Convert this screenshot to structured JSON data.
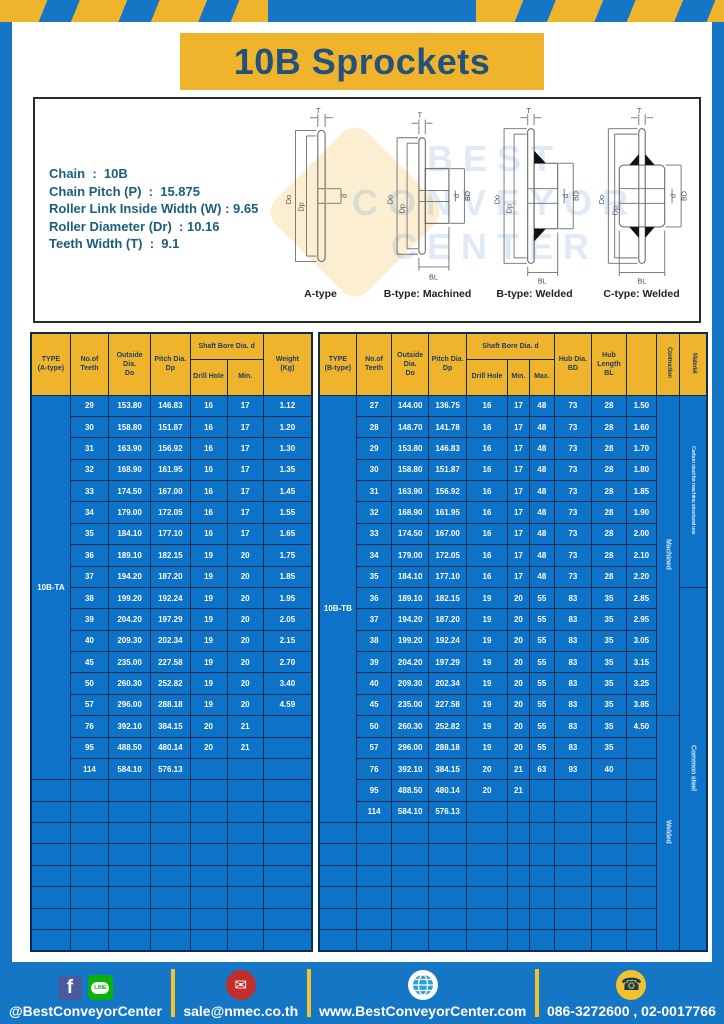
{
  "page": {
    "title": "10B Sprockets"
  },
  "specs": {
    "lines": [
      "Chain  :  10B",
      "Chain Pitch (P)  :  15.875",
      "Roller Link Inside Width (W) : 9.65",
      "Roller Diameter (Dr)  : 10.16",
      "Teeth Width (T)  :  9.1"
    ]
  },
  "watermark": {
    "lines": [
      "BEST",
      "CONVEYOR",
      "CENTER"
    ]
  },
  "dim_labels": {
    "t": "T",
    "do": "Do",
    "dp": "Dp",
    "d": "d",
    "bd": "BD",
    "bl": "BL"
  },
  "diagrams": [
    {
      "caption": "A-type"
    },
    {
      "caption": "B-type: Machined"
    },
    {
      "caption": "B-type: Welded"
    },
    {
      "caption": "C-type: Welded"
    }
  ],
  "table_a": {
    "type_label": "10B-TA",
    "headers": {
      "type": "TYPE\n(A-type)",
      "teeth": "No.of\nTeeth",
      "outside": "Outside\nDia.\nDo",
      "pitch": "Pitch Dia.\nDp",
      "shaft_bore": "Shaft Bore Dia. d",
      "drill": "Drill Hole",
      "min": "Min.",
      "weight": "Weight\n(Kg)"
    },
    "col_keys": [
      "teeth",
      "outside-dia",
      "pitch-dia",
      "drill-hole",
      "min",
      "weight"
    ],
    "rows": [
      [
        "29",
        "153.80",
        "146.83",
        "16",
        "17",
        "1.12"
      ],
      [
        "30",
        "158.80",
        "151.87",
        "16",
        "17",
        "1.20"
      ],
      [
        "31",
        "163.90",
        "156.92",
        "16",
        "17",
        "1.30"
      ],
      [
        "32",
        "168.90",
        "161.95",
        "16",
        "17",
        "1.35"
      ],
      [
        "33",
        "174.50",
        "167.00",
        "16",
        "17",
        "1.45"
      ],
      [
        "34",
        "179.00",
        "172.05",
        "16",
        "17",
        "1.55"
      ],
      [
        "35",
        "184.10",
        "177.10",
        "16",
        "17",
        "1.65"
      ],
      [
        "36",
        "189.10",
        "182.15",
        "19",
        "20",
        "1.75"
      ],
      [
        "37",
        "194.20",
        "187.20",
        "19",
        "20",
        "1.85"
      ],
      [
        "38",
        "199.20",
        "192.24",
        "19",
        "20",
        "1.95"
      ],
      [
        "39",
        "204.20",
        "197.29",
        "19",
        "20",
        "2.05"
      ],
      [
        "40",
        "209.30",
        "202.34",
        "19",
        "20",
        "2.15"
      ],
      [
        "45",
        "235.00",
        "227.58",
        "19",
        "20",
        "2.70"
      ],
      [
        "50",
        "260.30",
        "252.82",
        "19",
        "20",
        "3.40"
      ],
      [
        "57",
        "296.00",
        "288.18",
        "19",
        "20",
        "4.59"
      ],
      [
        "76",
        "392.10",
        "384.15",
        "20",
        "21",
        ""
      ],
      [
        "95",
        "488.50",
        "480.14",
        "20",
        "21",
        ""
      ],
      [
        "114",
        "584.10",
        "576.13",
        "",
        "",
        ""
      ]
    ],
    "empty_rows": 8
  },
  "table_b": {
    "type_label": "10B-TB",
    "headers": {
      "type": "TYPE\n(B-type)",
      "teeth": "No.of\nTeeth",
      "outside": "Outside\nDia.\nDo",
      "pitch": "Pitch Dia.\nDp",
      "shaft_bore": "Shaft Bore Dia. d",
      "drill": "Drill Hole",
      "min": "Min.",
      "max": "Max.",
      "hub_dia": "Hub Dia.\nBD",
      "hub_len": "Hub\nLength\nBL",
      "construction": "Contruction",
      "material": "Material"
    },
    "col_keys": [
      "teeth",
      "outside-dia",
      "pitch-dia",
      "drill-hole",
      "min",
      "max",
      "hub-dia",
      "hub-length",
      "weight"
    ],
    "rows": [
      [
        "27",
        "144.00",
        "136.75",
        "16",
        "17",
        "48",
        "73",
        "28",
        "1.50"
      ],
      [
        "28",
        "148.70",
        "141.78",
        "16",
        "17",
        "48",
        "73",
        "28",
        "1.60"
      ],
      [
        "29",
        "153.80",
        "146.83",
        "16",
        "17",
        "48",
        "73",
        "28",
        "1.70"
      ],
      [
        "30",
        "158.80",
        "151.87",
        "16",
        "17",
        "48",
        "73",
        "28",
        "1.80"
      ],
      [
        "31",
        "163.90",
        "156.92",
        "16",
        "17",
        "48",
        "73",
        "28",
        "1.85"
      ],
      [
        "32",
        "168.90",
        "161.95",
        "16",
        "17",
        "48",
        "73",
        "28",
        "1.90"
      ],
      [
        "33",
        "174.50",
        "167.00",
        "16",
        "17",
        "48",
        "73",
        "28",
        "2.00"
      ],
      [
        "34",
        "179.00",
        "172.05",
        "16",
        "17",
        "48",
        "73",
        "28",
        "2.10"
      ],
      [
        "35",
        "184.10",
        "177.10",
        "16",
        "17",
        "48",
        "73",
        "28",
        "2.20"
      ],
      [
        "36",
        "189.10",
        "182.15",
        "19",
        "20",
        "55",
        "83",
        "35",
        "2.85"
      ],
      [
        "37",
        "194.20",
        "187.20",
        "19",
        "20",
        "55",
        "83",
        "35",
        "2.95"
      ],
      [
        "38",
        "199.20",
        "192.24",
        "19",
        "20",
        "55",
        "83",
        "35",
        "3.05"
      ],
      [
        "39",
        "204.20",
        "197.29",
        "19",
        "20",
        "55",
        "83",
        "35",
        "3.15"
      ],
      [
        "40",
        "209.30",
        "202.34",
        "19",
        "20",
        "55",
        "83",
        "35",
        "3.25"
      ],
      [
        "45",
        "235.00",
        "227.58",
        "19",
        "20",
        "55",
        "83",
        "35",
        "3.85"
      ],
      [
        "50",
        "260.30",
        "252.82",
        "19",
        "20",
        "55",
        "83",
        "35",
        "4.50"
      ],
      [
        "57",
        "296.00",
        "288.18",
        "19",
        "20",
        "55",
        "83",
        "35",
        ""
      ],
      [
        "76",
        "392.10",
        "384.15",
        "20",
        "21",
        "63",
        "93",
        "40",
        ""
      ],
      [
        "95",
        "488.50",
        "480.14",
        "20",
        "21",
        "",
        "",
        "",
        ""
      ],
      [
        "114",
        "584.10",
        "576.13",
        "",
        "",
        "",
        "",
        "",
        ""
      ]
    ],
    "empty_rows": 6,
    "construction_groups": [
      {
        "label": "Machined",
        "rows": 15
      },
      {
        "label": "Welded",
        "rows": 11
      }
    ],
    "material_groups": [
      {
        "label": "Carbon steel for  machine structural  use",
        "rows": 9,
        "small": true
      },
      {
        "label": "Common steel",
        "rows": 17,
        "small": false
      }
    ]
  },
  "footer": {
    "social_handle": "@BestConveyorCenter",
    "facebook_letter": "f",
    "line_label": "LINE",
    "email": "sale@nmec.co.th",
    "website": "www.BestConveyorCenter.com",
    "phone": "086-3272600 , 02-0017766",
    "mail_glyph": "✉",
    "phone_glyph": "☎"
  },
  "colors": {
    "frame_blue": "#1576c5",
    "accent_yellow": "#f0b42c",
    "table_body_blue": "#0d73c9",
    "grid_navy": "#0a2c50",
    "header_text_navy": "#1c3f63",
    "spec_text_teal": "#1a5f7e"
  }
}
